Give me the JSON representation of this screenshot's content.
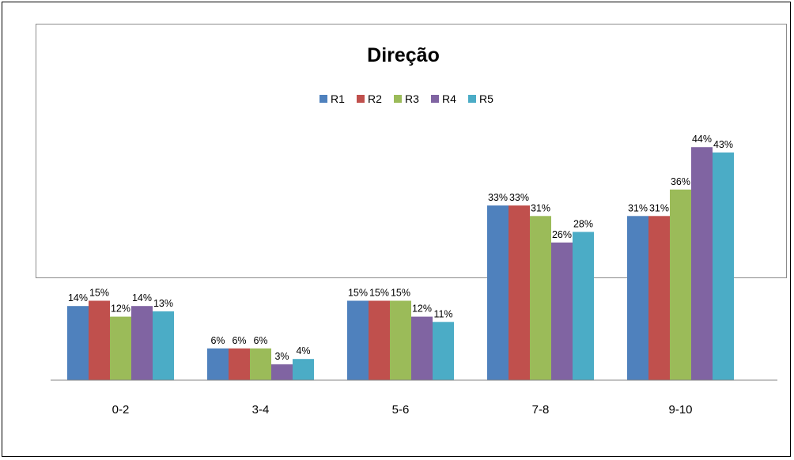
{
  "chart_data": {
    "type": "bar",
    "title": "Direção",
    "xlabel": "",
    "ylabel": "",
    "ylim": [
      0,
      50
    ],
    "grid": false,
    "legend_position": "top-center",
    "categories": [
      "0-2",
      "3-4",
      "5-6",
      "7-8",
      "9-10"
    ],
    "series": [
      {
        "name": "R1",
        "color": "#4F81BD",
        "values": [
          14,
          6,
          15,
          33,
          31
        ],
        "labels": [
          "14%",
          "6%",
          "15%",
          "33%",
          "31%"
        ]
      },
      {
        "name": "R2",
        "color": "#C0504D",
        "values": [
          15,
          6,
          15,
          33,
          31
        ],
        "labels": [
          "15%",
          "6%",
          "15%",
          "33%",
          "31%"
        ]
      },
      {
        "name": "R3",
        "color": "#9BBB59",
        "values": [
          12,
          6,
          15,
          31,
          36
        ],
        "labels": [
          "12%",
          "6%",
          "15%",
          "31%",
          "36%"
        ]
      },
      {
        "name": "R4",
        "color": "#8064A2",
        "values": [
          14,
          3,
          12,
          26,
          44
        ],
        "labels": [
          "14%",
          "3%",
          "12%",
          "26%",
          "44%"
        ]
      },
      {
        "name": "R5",
        "color": "#4BACC6",
        "values": [
          13,
          4,
          11,
          28,
          43
        ],
        "labels": [
          "13%",
          "4%",
          "11%",
          "28%",
          "43%"
        ]
      }
    ]
  }
}
